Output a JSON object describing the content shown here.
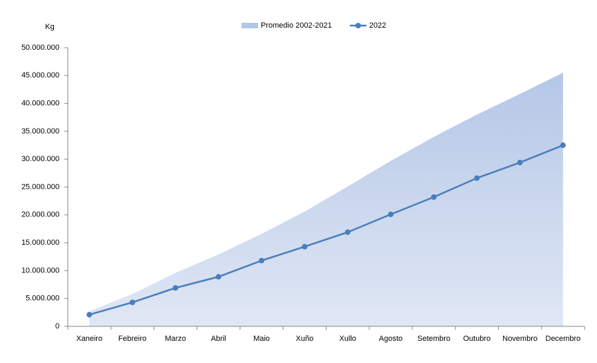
{
  "chart_data": {
    "type": "area-line",
    "y_label": "Kg",
    "categories": [
      "Xaneiro",
      "Febreiro",
      "Marzo",
      "Abril",
      "Maio",
      "Xuño",
      "Xullo",
      "Agosto",
      "Setembro",
      "Outubro",
      "Novembro",
      "Decembro"
    ],
    "series": [
      {
        "name": "Promedio 2002-2021",
        "kind": "area",
        "color": "#b4c7e7",
        "values": [
          2700000,
          5800000,
          9600000,
          12900000,
          16600000,
          20600000,
          25100000,
          29700000,
          34000000,
          38000000,
          41700000,
          45500000
        ]
      },
      {
        "name": "2022",
        "kind": "line",
        "color": "#4a7ebb",
        "values": [
          2100000,
          4300000,
          6900000,
          8900000,
          11800000,
          14300000,
          16900000,
          20100000,
          23200000,
          26600000,
          29400000,
          32500000
        ]
      }
    ],
    "ylim": [
      0,
      50000000
    ],
    "yticks": [
      0,
      {
        "value": 5000000,
        "label": "5.000.000"
      },
      {
        "value": 10000000,
        "label": "10.000.000"
      },
      {
        "value": 15000000,
        "label": "15.000.000"
      },
      {
        "value": 20000000,
        "label": "20.000.000"
      },
      {
        "value": 25000000,
        "label": "25.000.000"
      },
      {
        "value": 30000000,
        "label": "30.000.000"
      },
      {
        "value": 35000000,
        "label": "35.000.000"
      },
      {
        "value": 40000000,
        "label": "40.000.000"
      },
      {
        "value": 45000000,
        "label": "45.000.000"
      },
      {
        "value": 50000000,
        "label": "50.000.000"
      }
    ],
    "grid": false
  }
}
